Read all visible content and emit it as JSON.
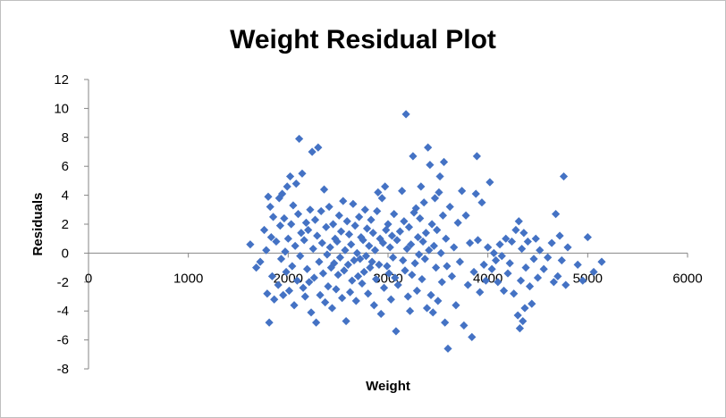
{
  "chart_data": {
    "type": "scatter",
    "title": "Weight  Residual Plot",
    "xlabel": "Weight",
    "ylabel": "Residuals",
    "xlim": [
      0,
      6000
    ],
    "ylim": [
      -8,
      12
    ],
    "x_ticks": [
      "0",
      "1000",
      "2000",
      "3000",
      "4000",
      "5000",
      "6000"
    ],
    "y_ticks": [
      "12",
      "10",
      "8",
      "6",
      "4",
      "2",
      "0",
      "-2",
      "-4",
      "-6",
      "-8"
    ],
    "grid": false,
    "legend": "none",
    "marker": "diamond",
    "series": [
      {
        "color": "#4472C4",
        "points": [
          [
            1620,
            0.6
          ],
          [
            1680,
            -1.0
          ],
          [
            1720,
            -0.6
          ],
          [
            1760,
            1.6
          ],
          [
            1780,
            0.2
          ],
          [
            1790,
            -2.8
          ],
          [
            1800,
            3.9
          ],
          [
            1810,
            -4.8
          ],
          [
            1820,
            3.2
          ],
          [
            1830,
            1.1
          ],
          [
            1840,
            -1.6
          ],
          [
            1850,
            2.5
          ],
          [
            1860,
            -3.2
          ],
          [
            1880,
            0.8
          ],
          [
            1900,
            -2.2
          ],
          [
            1910,
            3.8
          ],
          [
            1920,
            1.9
          ],
          [
            1930,
            -0.4
          ],
          [
            1940,
            4.1
          ],
          [
            1950,
            -2.9
          ],
          [
            1960,
            2.4
          ],
          [
            1970,
            0.1
          ],
          [
            1980,
            -1.3
          ],
          [
            1990,
            4.6
          ],
          [
            2000,
            1.0
          ],
          [
            2010,
            -2.6
          ],
          [
            2020,
            5.3
          ],
          [
            2030,
            2.0
          ],
          [
            2040,
            -0.9
          ],
          [
            2050,
            3.3
          ],
          [
            2060,
            -3.6
          ],
          [
            2070,
            0.5
          ],
          [
            2080,
            4.8
          ],
          [
            2090,
            -1.9
          ],
          [
            2100,
            2.7
          ],
          [
            2110,
            7.9
          ],
          [
            2120,
            -0.2
          ],
          [
            2130,
            1.4
          ],
          [
            2140,
            5.5
          ],
          [
            2150,
            -2.4
          ],
          [
            2160,
            0.9
          ],
          [
            2170,
            -3.0
          ],
          [
            2180,
            2.1
          ],
          [
            2190,
            -1.1
          ],
          [
            2200,
            1.6
          ],
          [
            2210,
            -2.0
          ],
          [
            2220,
            3.0
          ],
          [
            2230,
            -4.1
          ],
          [
            2240,
            7.0
          ],
          [
            2250,
            0.3
          ],
          [
            2260,
            -1.7
          ],
          [
            2270,
            2.3
          ],
          [
            2280,
            -4.8
          ],
          [
            2290,
            1.2
          ],
          [
            2300,
            7.3
          ],
          [
            2310,
            -0.6
          ],
          [
            2320,
            -2.9
          ],
          [
            2330,
            2.9
          ],
          [
            2340,
            0.7
          ],
          [
            2350,
            -1.4
          ],
          [
            2360,
            4.4
          ],
          [
            2370,
            -3.4
          ],
          [
            2380,
            1.8
          ],
          [
            2390,
            -0.1
          ],
          [
            2400,
            -2.3
          ],
          [
            2410,
            3.2
          ],
          [
            2420,
            0.4
          ],
          [
            2430,
            -1.0
          ],
          [
            2440,
            -3.8
          ],
          [
            2450,
            2.0
          ],
          [
            2460,
            -0.7
          ],
          [
            2470,
            1.0
          ],
          [
            2480,
            -2.5
          ],
          [
            2490,
            0.8
          ],
          [
            2500,
            -1.5
          ],
          [
            2510,
            2.6
          ],
          [
            2520,
            -0.3
          ],
          [
            2530,
            1.5
          ],
          [
            2540,
            -3.1
          ],
          [
            2550,
            3.6
          ],
          [
            2560,
            -1.2
          ],
          [
            2570,
            0.2
          ],
          [
            2580,
            -4.7
          ],
          [
            2590,
            2.2
          ],
          [
            2600,
            -0.8
          ],
          [
            2610,
            1.3
          ],
          [
            2620,
            -2.7
          ],
          [
            2630,
            0.6
          ],
          [
            2640,
            -1.9
          ],
          [
            2650,
            3.4
          ],
          [
            2660,
            -0.5
          ],
          [
            2670,
            1.9
          ],
          [
            2680,
            -3.3
          ],
          [
            2690,
            0.0
          ],
          [
            2700,
            -1.6
          ],
          [
            2710,
            2.5
          ],
          [
            2720,
            -0.4
          ],
          [
            2730,
            1.1
          ],
          [
            2740,
            -2.1
          ],
          [
            2750,
            0.9
          ],
          [
            2760,
            -1.3
          ],
          [
            2770,
            3.0
          ],
          [
            2780,
            -0.2
          ],
          [
            2790,
            1.7
          ],
          [
            2800,
            -2.8
          ],
          [
            2810,
            0.5
          ],
          [
            2820,
            -1.0
          ],
          [
            2830,
            2.3
          ],
          [
            2840,
            -0.6
          ],
          [
            2850,
            1.4
          ],
          [
            2860,
            -3.6
          ],
          [
            2870,
            0.2
          ],
          [
            2880,
            -1.8
          ],
          [
            2890,
            2.9
          ],
          [
            2900,
            4.2
          ],
          [
            2910,
            -0.8
          ],
          [
            2920,
            1.0
          ],
          [
            2930,
            -4.2
          ],
          [
            2940,
            3.8
          ],
          [
            2950,
            0.7
          ],
          [
            2960,
            -2.4
          ],
          [
            2970,
            4.6
          ],
          [
            2980,
            1.6
          ],
          [
            2990,
            -0.9
          ],
          [
            3000,
            2.0
          ],
          [
            3010,
            -1.4
          ],
          [
            3020,
            0.4
          ],
          [
            3030,
            -3.2
          ],
          [
            3040,
            1.2
          ],
          [
            3050,
            -0.3
          ],
          [
            3060,
            2.7
          ],
          [
            3070,
            -1.7
          ],
          [
            3080,
            -5.4
          ],
          [
            3090,
            0.9
          ],
          [
            3100,
            -2.2
          ],
          [
            3120,
            1.5
          ],
          [
            3140,
            4.3
          ],
          [
            3150,
            -0.5
          ],
          [
            3160,
            2.2
          ],
          [
            3170,
            -1.2
          ],
          [
            3180,
            9.6
          ],
          [
            3190,
            0.3
          ],
          [
            3200,
            -3.0
          ],
          [
            3210,
            1.8
          ],
          [
            3220,
            -4.0
          ],
          [
            3230,
            0.6
          ],
          [
            3240,
            -1.5
          ],
          [
            3250,
            6.7
          ],
          [
            3260,
            2.8
          ],
          [
            3270,
            -0.7
          ],
          [
            3280,
            3.1
          ],
          [
            3290,
            -2.6
          ],
          [
            3300,
            1.1
          ],
          [
            3310,
            -0.1
          ],
          [
            3320,
            2.4
          ],
          [
            3330,
            4.6
          ],
          [
            3340,
            -1.8
          ],
          [
            3350,
            0.8
          ],
          [
            3360,
            3.5
          ],
          [
            3370,
            -0.4
          ],
          [
            3380,
            1.4
          ],
          [
            3390,
            -3.8
          ],
          [
            3400,
            7.3
          ],
          [
            3410,
            0.2
          ],
          [
            3420,
            6.1
          ],
          [
            3430,
            -2.9
          ],
          [
            3440,
            2.0
          ],
          [
            3450,
            -4.1
          ],
          [
            3460,
            0.5
          ],
          [
            3470,
            3.8
          ],
          [
            3480,
            -1.0
          ],
          [
            3490,
            1.6
          ],
          [
            3500,
            -3.3
          ],
          [
            3510,
            4.2
          ],
          [
            3520,
            5.3
          ],
          [
            3530,
            0.0
          ],
          [
            3540,
            -2.0
          ],
          [
            3550,
            2.6
          ],
          [
            3560,
            6.3
          ],
          [
            3570,
            -4.8
          ],
          [
            3580,
            1.0
          ],
          [
            3590,
            -0.9
          ],
          [
            3600,
            -6.6
          ],
          [
            3620,
            3.2
          ],
          [
            3640,
            -1.6
          ],
          [
            3660,
            0.4
          ],
          [
            3680,
            -3.6
          ],
          [
            3700,
            2.1
          ],
          [
            3720,
            -0.6
          ],
          [
            3740,
            4.3
          ],
          [
            3760,
            -5.0
          ],
          [
            3780,
            2.6
          ],
          [
            3800,
            -2.2
          ],
          [
            3820,
            0.7
          ],
          [
            3840,
            -5.8
          ],
          [
            3860,
            -1.3
          ],
          [
            3880,
            4.1
          ],
          [
            3890,
            6.7
          ],
          [
            3900,
            0.9
          ],
          [
            3920,
            -2.7
          ],
          [
            3940,
            3.5
          ],
          [
            3960,
            -0.8
          ],
          [
            3980,
            -1.9
          ],
          [
            4000,
            0.4
          ],
          [
            4020,
            4.9
          ],
          [
            4040,
            -1.1
          ],
          [
            4060,
            0.0
          ],
          [
            4080,
            -0.5
          ],
          [
            4100,
            -2.0
          ],
          [
            4120,
            0.6
          ],
          [
            4140,
            -0.2
          ],
          [
            4160,
            -2.6
          ],
          [
            4180,
            1.0
          ],
          [
            4200,
            -1.4
          ],
          [
            4220,
            -0.7
          ],
          [
            4240,
            0.8
          ],
          [
            4260,
            -2.8
          ],
          [
            4280,
            1.6
          ],
          [
            4300,
            -4.3
          ],
          [
            4310,
            2.2
          ],
          [
            4320,
            -5.2
          ],
          [
            4330,
            -1.9
          ],
          [
            4340,
            0.3
          ],
          [
            4350,
            -4.7
          ],
          [
            4360,
            1.4
          ],
          [
            4370,
            -3.8
          ],
          [
            4380,
            -1.0
          ],
          [
            4400,
            0.8
          ],
          [
            4420,
            -2.3
          ],
          [
            4440,
            -3.5
          ],
          [
            4460,
            -0.4
          ],
          [
            4480,
            1.0
          ],
          [
            4500,
            -1.7
          ],
          [
            4520,
            0.2
          ],
          [
            4560,
            -1.1
          ],
          [
            4600,
            -0.3
          ],
          [
            4640,
            0.7
          ],
          [
            4660,
            -2.0
          ],
          [
            4680,
            2.7
          ],
          [
            4700,
            -1.6
          ],
          [
            4720,
            1.2
          ],
          [
            4740,
            -0.5
          ],
          [
            4760,
            5.3
          ],
          [
            4780,
            -2.2
          ],
          [
            4800,
            0.4
          ],
          [
            4900,
            -0.8
          ],
          [
            4950,
            -1.9
          ],
          [
            5000,
            1.1
          ],
          [
            5060,
            -1.3
          ],
          [
            5140,
            -0.6
          ]
        ]
      }
    ]
  }
}
